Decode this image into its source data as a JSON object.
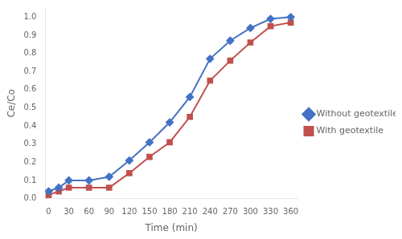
{
  "chart_data": {
    "type": "line",
    "x": [
      0,
      15,
      30,
      60,
      90,
      120,
      150,
      180,
      210,
      240,
      270,
      300,
      330,
      360
    ],
    "series": [
      {
        "name": "Without geotextile",
        "color": "#4472C4",
        "marker": "diamond",
        "values": [
          0.04,
          0.06,
          0.1,
          0.1,
          0.12,
          0.21,
          0.31,
          0.42,
          0.56,
          0.77,
          0.87,
          0.94,
          0.99,
          1.0
        ]
      },
      {
        "name": "With geotextile",
        "color": "#C0504D",
        "marker": "square",
        "values": [
          0.02,
          0.04,
          0.06,
          0.06,
          0.06,
          0.14,
          0.23,
          0.31,
          0.45,
          0.65,
          0.76,
          0.86,
          0.95,
          0.97
        ]
      }
    ],
    "xlabel": "Time (min)",
    "ylabel": "Ce/Co",
    "xlim": [
      -5,
      370
    ],
    "xticks": [
      0,
      30,
      60,
      90,
      120,
      150,
      180,
      210,
      240,
      270,
      300,
      330,
      360
    ],
    "ylim": [
      0,
      1.05
    ],
    "yticks": [
      {
        "value": 0,
        "label": "0.0"
      },
      0.1,
      0.2,
      0.3,
      0.4,
      0.5,
      0.6,
      0.7,
      0.8,
      0.9,
      {
        "value": 1,
        "label": "1.0"
      }
    ],
    "grid": false,
    "legend": "right"
  }
}
